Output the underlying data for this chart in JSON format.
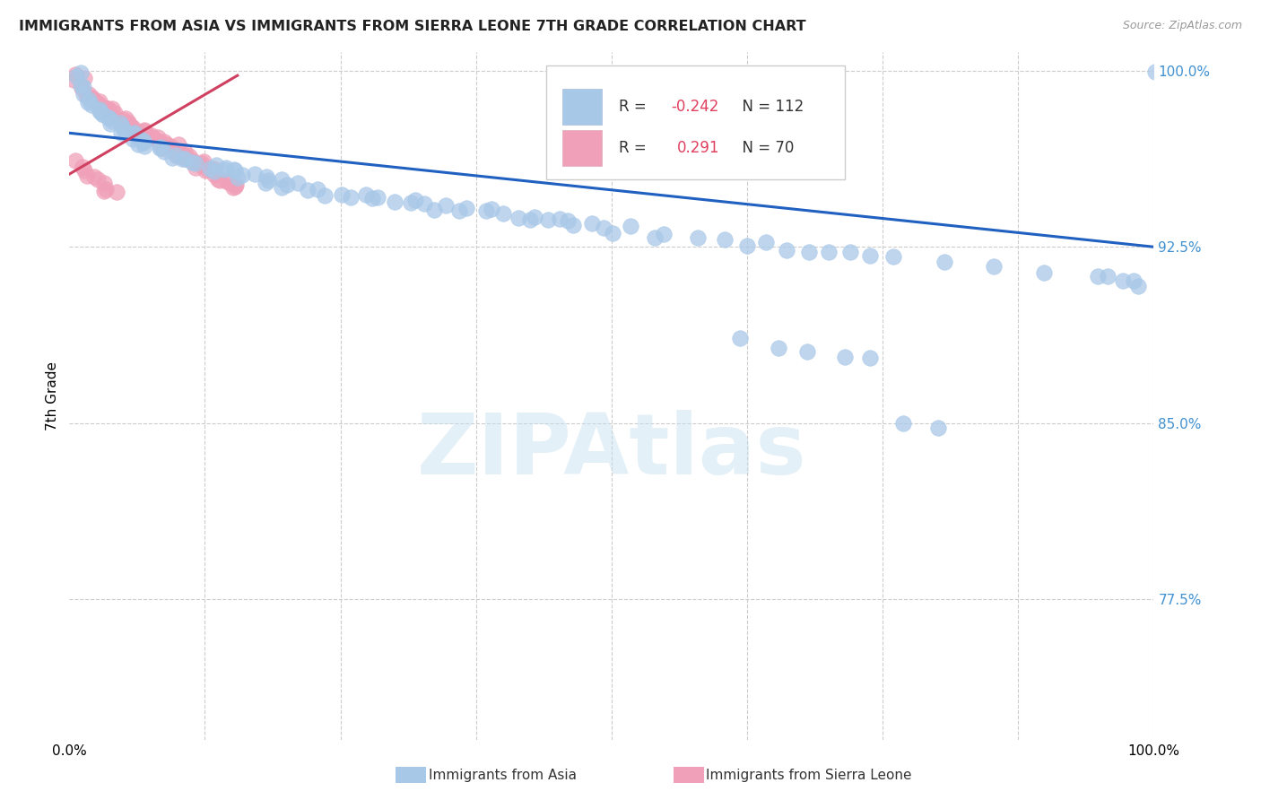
{
  "title": "IMMIGRANTS FROM ASIA VS IMMIGRANTS FROM SIERRA LEONE 7TH GRADE CORRELATION CHART",
  "source": "Source: ZipAtlas.com",
  "ylabel": "7th Grade",
  "xlim": [
    0.0,
    1.0
  ],
  "ylim": [
    0.715,
    1.008
  ],
  "yticks": [
    0.775,
    0.85,
    0.925,
    1.0
  ],
  "ytick_labels": [
    "77.5%",
    "85.0%",
    "92.5%",
    "100.0%"
  ],
  "xticks": [
    0.0,
    0.125,
    0.25,
    0.375,
    0.5,
    0.625,
    0.75,
    0.875,
    1.0
  ],
  "xtick_labels": [
    "0.0%",
    "",
    "",
    "",
    "",
    "",
    "",
    "",
    "100.0%"
  ],
  "legend_r_asia": "-0.242",
  "legend_n_asia": "112",
  "legend_r_sl": "0.291",
  "legend_n_sl": "70",
  "asia_color": "#a8c8e8",
  "sl_color": "#f0a0b8",
  "trendline_color": "#2060c0",
  "sl_trendline_color": "#d04060",
  "tick_color": "#4090d0",
  "asia_scatter_x": [
    0.005,
    0.008,
    0.01,
    0.012,
    0.015,
    0.018,
    0.02,
    0.022,
    0.025,
    0.028,
    0.03,
    0.032,
    0.035,
    0.038,
    0.04,
    0.042,
    0.045,
    0.048,
    0.05,
    0.052,
    0.055,
    0.058,
    0.06,
    0.062,
    0.065,
    0.068,
    0.07,
    0.075,
    0.08,
    0.085,
    0.09,
    0.095,
    0.1,
    0.105,
    0.11,
    0.115,
    0.12,
    0.125,
    0.13,
    0.135,
    0.14,
    0.145,
    0.15,
    0.155,
    0.16,
    0.165,
    0.17,
    0.175,
    0.18,
    0.185,
    0.19,
    0.195,
    0.2,
    0.21,
    0.22,
    0.23,
    0.24,
    0.25,
    0.26,
    0.27,
    0.28,
    0.29,
    0.3,
    0.31,
    0.32,
    0.33,
    0.34,
    0.35,
    0.36,
    0.37,
    0.38,
    0.39,
    0.4,
    0.41,
    0.42,
    0.43,
    0.44,
    0.45,
    0.46,
    0.47,
    0.48,
    0.49,
    0.5,
    0.52,
    0.54,
    0.55,
    0.58,
    0.6,
    0.62,
    0.64,
    0.66,
    0.68,
    0.7,
    0.72,
    0.74,
    0.76,
    0.8,
    0.85,
    0.9,
    0.95,
    0.96,
    0.97,
    0.98,
    0.99,
    1.0,
    0.62,
    0.65,
    0.68,
    0.71,
    0.74,
    0.77,
    0.8
  ],
  "asia_scatter_y": [
    0.998,
    0.997,
    0.995,
    0.993,
    0.99,
    0.988,
    0.986,
    0.985,
    0.984,
    0.983,
    0.982,
    0.981,
    0.98,
    0.979,
    0.978,
    0.977,
    0.977,
    0.976,
    0.975,
    0.974,
    0.974,
    0.973,
    0.972,
    0.972,
    0.971,
    0.97,
    0.97,
    0.969,
    0.968,
    0.967,
    0.966,
    0.965,
    0.964,
    0.963,
    0.963,
    0.962,
    0.961,
    0.96,
    0.96,
    0.959,
    0.958,
    0.958,
    0.957,
    0.956,
    0.956,
    0.955,
    0.955,
    0.954,
    0.953,
    0.953,
    0.952,
    0.952,
    0.951,
    0.951,
    0.95,
    0.949,
    0.948,
    0.948,
    0.947,
    0.947,
    0.946,
    0.945,
    0.945,
    0.944,
    0.944,
    0.943,
    0.942,
    0.942,
    0.941,
    0.941,
    0.94,
    0.94,
    0.939,
    0.939,
    0.938,
    0.937,
    0.937,
    0.936,
    0.936,
    0.935,
    0.934,
    0.934,
    0.933,
    0.932,
    0.931,
    0.93,
    0.928,
    0.928,
    0.927,
    0.926,
    0.925,
    0.924,
    0.923,
    0.922,
    0.921,
    0.92,
    0.919,
    0.917,
    0.915,
    0.913,
    0.912,
    0.911,
    0.91,
    0.909,
    1.0,
    0.886,
    0.882,
    0.88,
    0.878,
    0.876,
    0.85,
    0.848
  ],
  "sl_scatter_x": [
    0.003,
    0.006,
    0.009,
    0.012,
    0.015,
    0.018,
    0.02,
    0.023,
    0.026,
    0.028,
    0.03,
    0.033,
    0.036,
    0.038,
    0.04,
    0.043,
    0.046,
    0.048,
    0.05,
    0.053,
    0.056,
    0.058,
    0.06,
    0.063,
    0.066,
    0.068,
    0.07,
    0.073,
    0.076,
    0.078,
    0.08,
    0.083,
    0.086,
    0.088,
    0.09,
    0.093,
    0.096,
    0.098,
    0.1,
    0.103,
    0.106,
    0.108,
    0.11,
    0.113,
    0.116,
    0.118,
    0.12,
    0.123,
    0.126,
    0.128,
    0.13,
    0.133,
    0.136,
    0.138,
    0.14,
    0.143,
    0.146,
    0.148,
    0.15,
    0.153,
    0.006,
    0.01,
    0.014,
    0.018,
    0.022,
    0.026,
    0.03,
    0.034,
    0.038,
    0.042
  ],
  "sl_scatter_y": [
    0.998,
    0.997,
    0.995,
    0.993,
    0.991,
    0.99,
    0.989,
    0.988,
    0.987,
    0.986,
    0.985,
    0.984,
    0.983,
    0.983,
    0.982,
    0.981,
    0.98,
    0.98,
    0.979,
    0.978,
    0.977,
    0.977,
    0.976,
    0.975,
    0.975,
    0.974,
    0.973,
    0.973,
    0.972,
    0.971,
    0.971,
    0.97,
    0.969,
    0.969,
    0.968,
    0.967,
    0.967,
    0.966,
    0.965,
    0.965,
    0.964,
    0.963,
    0.963,
    0.962,
    0.961,
    0.961,
    0.96,
    0.959,
    0.959,
    0.958,
    0.957,
    0.957,
    0.956,
    0.955,
    0.955,
    0.954,
    0.953,
    0.953,
    0.952,
    0.951,
    0.962,
    0.96,
    0.958,
    0.956,
    0.954,
    0.952,
    0.95,
    0.949,
    0.948,
    0.947
  ],
  "trendline_x": [
    0.0,
    1.0
  ],
  "trendline_y_start": 0.9735,
  "trendline_y_end": 0.925,
  "sl_trendline_x": [
    0.0,
    0.155
  ],
  "sl_trendline_y_start": 0.956,
  "sl_trendline_y_end": 0.998,
  "background_color": "#ffffff",
  "grid_color": "#cccccc"
}
